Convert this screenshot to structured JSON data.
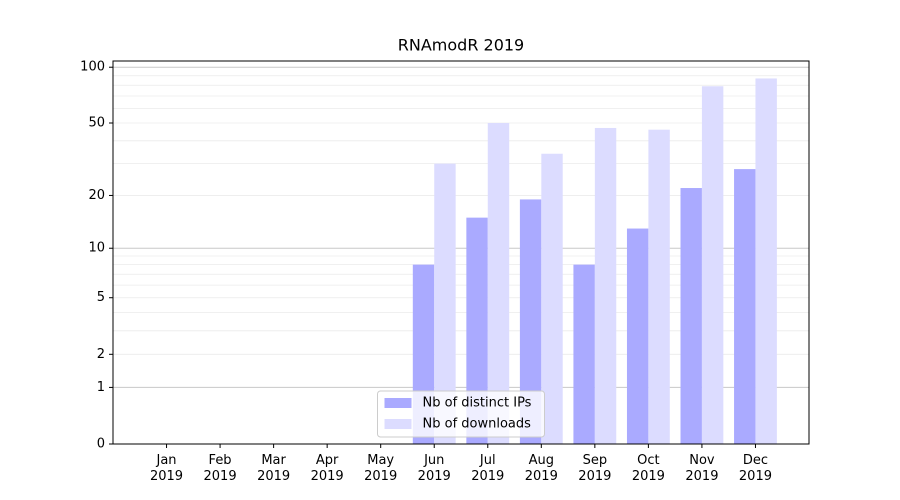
{
  "chart_data": {
    "type": "bar",
    "title": "RNAmodR 2019",
    "categories": [
      "Jan\n2019",
      "Feb\n2019",
      "Mar\n2019",
      "Apr\n2019",
      "May\n2019",
      "Jun\n2019",
      "Jul\n2019",
      "Aug\n2019",
      "Sep\n2019",
      "Oct\n2019",
      "Nov\n2019",
      "Dec\n2019"
    ],
    "series": [
      {
        "name": "Nb of distinct IPs",
        "color": "#aaaaff",
        "values": [
          0,
          0,
          0,
          0,
          0,
          8,
          15,
          19,
          8,
          13,
          22,
          28
        ]
      },
      {
        "name": "Nb of downloads",
        "color": "#dcdcff",
        "values": [
          0,
          0,
          0,
          0,
          0,
          30,
          50,
          34,
          47,
          46,
          79,
          87
        ]
      }
    ],
    "yscale": "log1p",
    "ylim": [
      0,
      108
    ],
    "yticks": [
      0,
      1,
      2,
      5,
      10,
      20,
      50,
      100
    ],
    "grid_major": [
      1,
      10,
      100
    ],
    "grid_minor": [
      2,
      3,
      4,
      5,
      6,
      7,
      8,
      9,
      20,
      30,
      40,
      50,
      60,
      70,
      80,
      90
    ],
    "legend": "lower center"
  }
}
